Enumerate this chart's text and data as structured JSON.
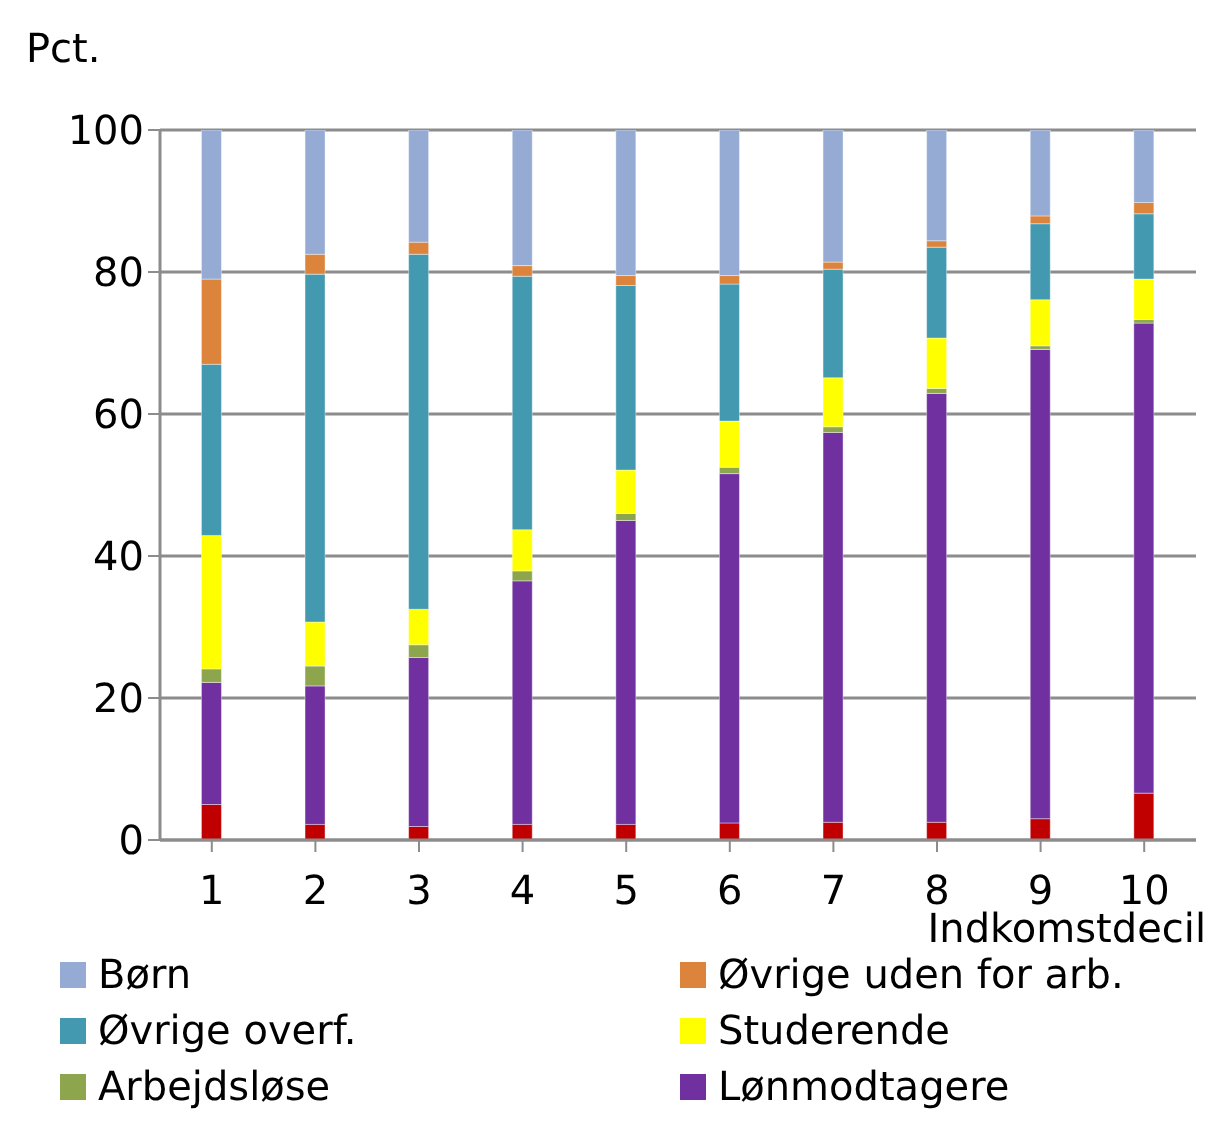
{
  "chart_data": {
    "type": "bar",
    "stacked": true,
    "ylabel": "Pct.",
    "xlabel": "Indkomstdecil",
    "categories": [
      "1",
      "2",
      "3",
      "4",
      "5",
      "6",
      "7",
      "8",
      "9",
      "10"
    ],
    "series": [
      {
        "color": "#c00000",
        "values": [
          5,
          2.2,
          1.9,
          2.2,
          2.2,
          2.4,
          2.5,
          2.5,
          3,
          6.6
        ]
      },
      {
        "name": "Lønmodtagere",
        "color": "#7030a0",
        "values": [
          17.2,
          19.5,
          23.8,
          34.3,
          42.8,
          49.2,
          54.9,
          60.4,
          66.1,
          66.2
        ]
      },
      {
        "name": "Arbejdsløse",
        "color": "#8da64e",
        "values": [
          1.9,
          2.8,
          1.8,
          1.4,
          1,
          0.9,
          0.8,
          0.7,
          0.5,
          0.5
        ]
      },
      {
        "name": "Studerende",
        "color": "#ffff00",
        "values": [
          18.8,
          6.2,
          5,
          5.8,
          6.1,
          6.5,
          6.9,
          7.1,
          6.5,
          5.7
        ]
      },
      {
        "name": "Øvrige overf.",
        "color": "#4299b0",
        "values": [
          24.1,
          49,
          50,
          35.7,
          26,
          19.3,
          15.3,
          12.8,
          10.7,
          9.2
        ]
      },
      {
        "name": "Øvrige uden for arb.",
        "color": "#dd843c",
        "values": [
          12,
          2.8,
          1.7,
          1.5,
          1.4,
          1.2,
          1,
          0.9,
          1.1,
          1.6
        ]
      },
      {
        "name": "Børn",
        "color": "#95abd3",
        "values": [
          21,
          17.5,
          15.8,
          19.1,
          20.5,
          20.5,
          18.6,
          15.6,
          12.1,
          10.2
        ]
      }
    ],
    "ylim": [
      0,
      100
    ],
    "yticks": [
      0,
      20,
      40,
      60,
      80,
      100
    ],
    "grid": "y",
    "legend": "bottom"
  }
}
